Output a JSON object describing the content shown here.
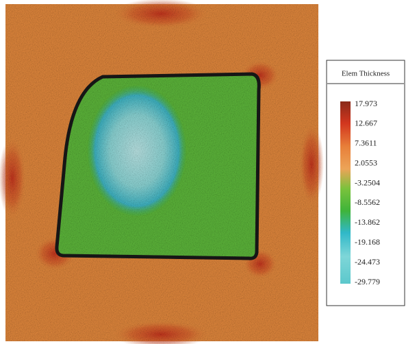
{
  "legend": {
    "title": "Elem Thickness",
    "labels": [
      "17.973",
      "12.667",
      "7.3611",
      "2.0553",
      "-3.2504",
      "-8.5562",
      "-13.862",
      "-19.168",
      "-24.473",
      "-29.779"
    ]
  }
}
